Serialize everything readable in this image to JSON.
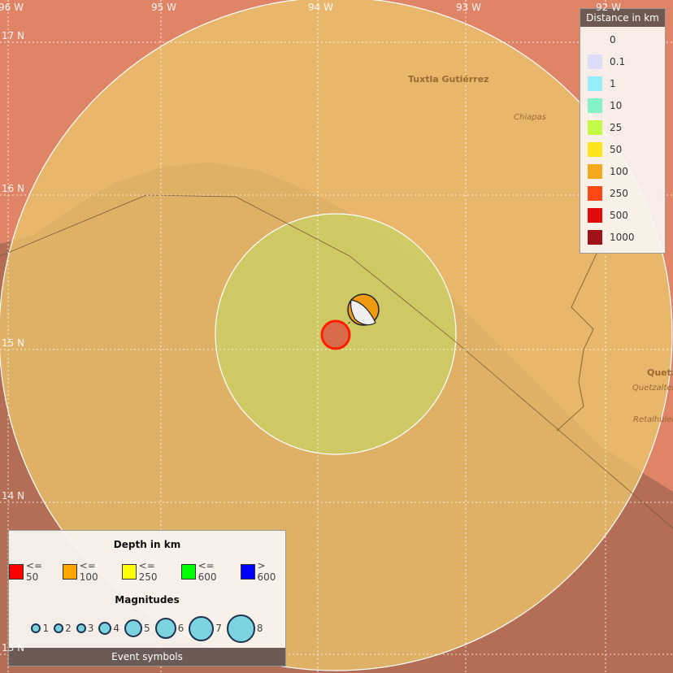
{
  "map": {
    "grid": {
      "longitudes": [
        "96 W",
        "95 W",
        "94 W",
        "93 W",
        "92 W"
      ],
      "latitudes": [
        "17 N",
        "16 N",
        "15 N",
        "14 N",
        "13 N"
      ]
    },
    "places": [
      {
        "name": "Tuxtla Gutiérrez",
        "kind": "city"
      },
      {
        "name": "Chiapas",
        "kind": "region"
      },
      {
        "name": "Quetza",
        "kind": "city"
      },
      {
        "name": "Quetzalten",
        "kind": "region"
      },
      {
        "name": "Retalhuleu",
        "kind": "region"
      }
    ],
    "colors": {
      "land": "#e08468",
      "ocean": "#b46e55",
      "outer_zone": "#e6b96c",
      "inner_zone": "#c6c868",
      "event": "#d96a4a",
      "event_border": "#ff0000"
    },
    "event": {
      "depth_class": "<= 50",
      "mechanism": "beachball"
    }
  },
  "distance_legend": {
    "title": "Distance in km",
    "items": [
      {
        "label": "0",
        "color": ""
      },
      {
        "label": "0.1",
        "color": "#dcdcf8"
      },
      {
        "label": "1",
        "color": "#96eefa"
      },
      {
        "label": "10",
        "color": "#84f2c4"
      },
      {
        "label": "25",
        "color": "#c4fa46"
      },
      {
        "label": "50",
        "color": "#fde31a"
      },
      {
        "label": "100",
        "color": "#f4aa1e"
      },
      {
        "label": "250",
        "color": "#fc4812"
      },
      {
        "label": "500",
        "color": "#e20a0a"
      },
      {
        "label": "1000",
        "color": "#a01218"
      }
    ]
  },
  "event_legend": {
    "depth_title": "Depth in km",
    "depths": [
      {
        "label": "<= 50",
        "color": "#ff0000"
      },
      {
        "label": "<= 100",
        "color": "#ffa500"
      },
      {
        "label": "<= 250",
        "color": "#ffff00"
      },
      {
        "label": "<= 600",
        "color": "#00ff00"
      },
      {
        "label": "> 600",
        "color": "#0000ff"
      }
    ],
    "magnitude_title": "Magnitudes",
    "magnitudes": [
      "1",
      "2",
      "3",
      "4",
      "5",
      "6",
      "7",
      "8"
    ],
    "footer": "Event symbols"
  }
}
